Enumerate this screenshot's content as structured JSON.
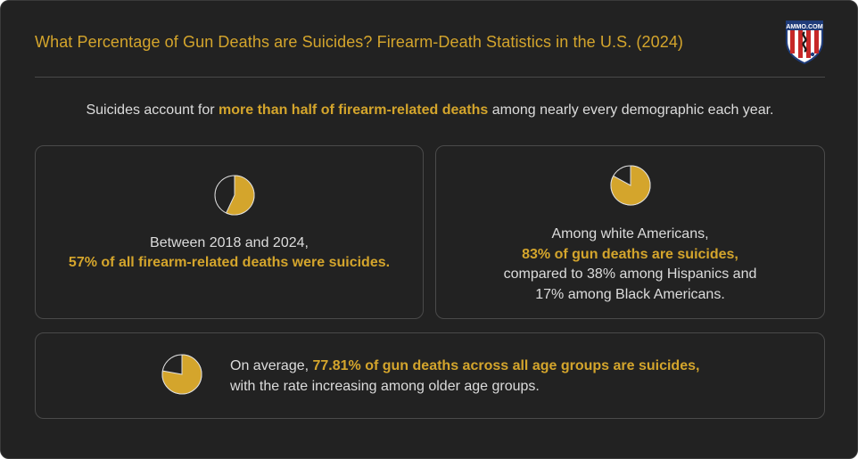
{
  "header": {
    "title": "What Percentage of Gun Deaths are Suicides? Firearm-Death Statistics in the U.S. (2024)",
    "logo_text": "AMMO.COM"
  },
  "intro": {
    "before": "Suicides account for ",
    "highlight": "more than half of firearm-related deaths",
    "after": " among nearly every demographic each year."
  },
  "cards": [
    {
      "pie_percent": 57,
      "line1": "Between 2018 and 2024,",
      "highlight": "57% of all firearm-related deaths were suicides."
    },
    {
      "pie_percent": 83,
      "line1": "Among white Americans,",
      "highlight": "83% of gun deaths are suicides,",
      "line3": "compared to 38% among Hispanics and",
      "line4": "17% among Black Americans."
    },
    {
      "pie_percent": 77.81,
      "before": "On average, ",
      "highlight": "77.81% of gun deaths across all age groups are suicides,",
      "line2": "with the rate increasing among older age groups."
    }
  ],
  "colors": {
    "accent": "#d4a52c",
    "background": "#222222",
    "text": "#dcdcdc",
    "border": "#4a4a4a"
  }
}
